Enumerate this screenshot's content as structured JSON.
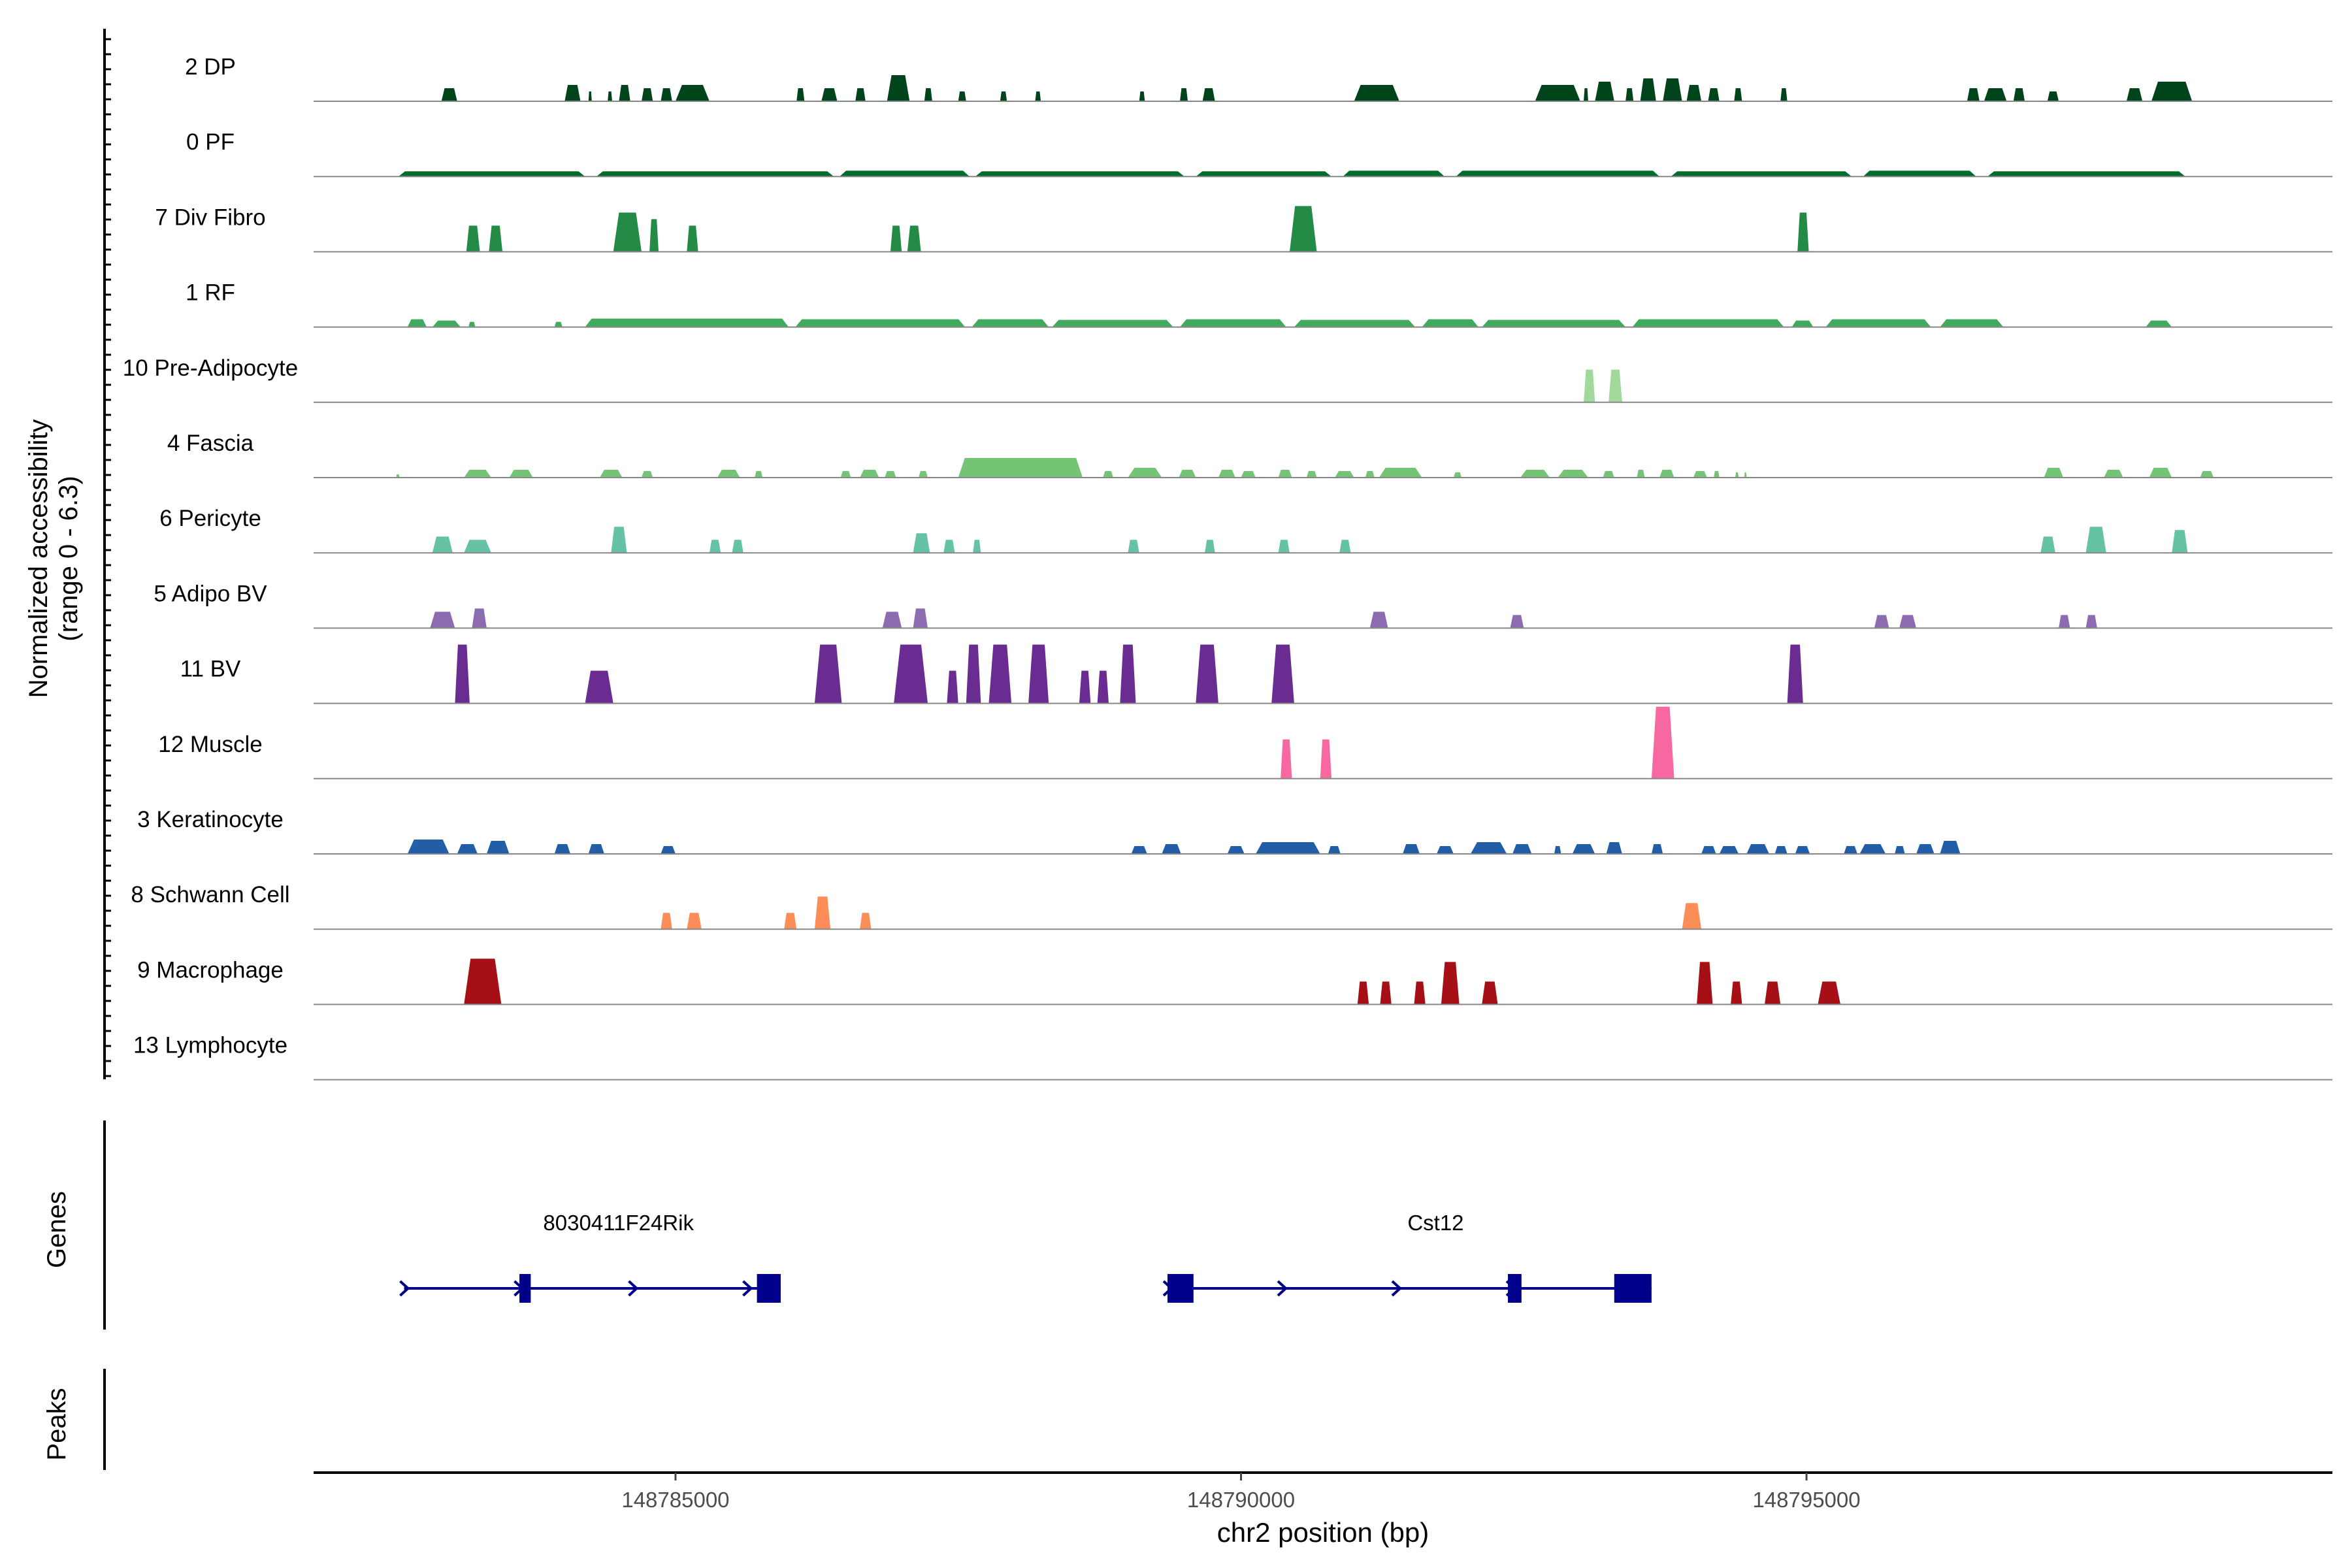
{
  "chart_data": {
    "type": "area",
    "title": "",
    "ylabel_line1": "Normalized accessibility",
    "ylabel_line2": "(range 0 - 6.3)",
    "genes_label": "Genes",
    "peaks_label": "Peaks",
    "xlabel": "chr2 position (bp)",
    "xlim": [
      148781800,
      148799650
    ],
    "x_ticks": [
      148785000,
      148790000,
      148795000
    ],
    "x_tick_labels": [
      "148785000",
      "148790000",
      "148795000"
    ],
    "y_range": [
      0,
      6.3
    ],
    "tracks": [
      {
        "name": "2 DP",
        "color": "#00441b",
        "regions": [
          [
            148782930,
            148783070,
            0.2
          ],
          [
            148784020,
            148784160,
            0.25
          ],
          [
            148784230,
            148784260,
            0.15
          ],
          [
            148784400,
            148784440,
            0.15
          ],
          [
            148784500,
            148784600,
            0.25
          ],
          [
            148784700,
            148784800,
            0.2
          ],
          [
            148784870,
            148784970,
            0.2
          ],
          [
            148785000,
            148785300,
            0.25
          ],
          [
            148786070,
            148786140,
            0.2
          ],
          [
            148786290,
            148786430,
            0.2
          ],
          [
            148786590,
            148786680,
            0.2
          ],
          [
            148786870,
            148787070,
            0.4
          ],
          [
            148787200,
            148787270,
            0.2
          ],
          [
            148787500,
            148787570,
            0.15
          ],
          [
            148787870,
            148787930,
            0.15
          ],
          [
            148788180,
            148788230,
            0.15
          ],
          [
            148789100,
            148789150,
            0.15
          ],
          [
            148789460,
            148789530,
            0.2
          ],
          [
            148789660,
            148789770,
            0.2
          ],
          [
            148791000,
            148791400,
            0.25
          ],
          [
            148792600,
            148793000,
            0.25
          ],
          [
            148793030,
            148793070,
            0.2
          ],
          [
            148793130,
            148793300,
            0.3
          ],
          [
            148793400,
            148793470,
            0.2
          ],
          [
            148793530,
            148793670,
            0.35
          ],
          [
            148793730,
            148793900,
            0.35
          ],
          [
            148793940,
            148794070,
            0.25
          ],
          [
            148794130,
            148794230,
            0.2
          ],
          [
            148794360,
            148794430,
            0.2
          ],
          [
            148794770,
            148794830,
            0.2
          ],
          [
            148796420,
            148796530,
            0.2
          ],
          [
            148796570,
            148796770,
            0.2
          ],
          [
            148796830,
            148796930,
            0.2
          ],
          [
            148797130,
            148797230,
            0.15
          ],
          [
            148797830,
            148797970,
            0.2
          ],
          [
            148798050,
            148798410,
            0.3
          ]
        ]
      },
      {
        "name": "0 PF",
        "color": "#006d2c",
        "regions": [
          [
            148782550,
            148784200,
            0.08
          ],
          [
            148784300,
            148786400,
            0.08
          ],
          [
            148786450,
            148787600,
            0.09
          ],
          [
            148787650,
            148789500,
            0.08
          ],
          [
            148789600,
            148790800,
            0.08
          ],
          [
            148790900,
            148791800,
            0.09
          ],
          [
            148791900,
            148793700,
            0.09
          ],
          [
            148793800,
            148795400,
            0.08
          ],
          [
            148795500,
            148796500,
            0.09
          ],
          [
            148796600,
            148798350,
            0.08
          ]
        ]
      },
      {
        "name": "7 Div Fibro",
        "color": "#238b45",
        "regions": [
          [
            148783150,
            148783270,
            0.4
          ],
          [
            148783350,
            148783470,
            0.4
          ],
          [
            148784450,
            148784700,
            0.6
          ],
          [
            148784770,
            148784850,
            0.5
          ],
          [
            148785100,
            148785200,
            0.4
          ],
          [
            148786900,
            148787000,
            0.4
          ],
          [
            148787050,
            148787170,
            0.4
          ],
          [
            148790430,
            148790670,
            0.7
          ],
          [
            148794920,
            148795020,
            0.6
          ]
        ]
      },
      {
        "name": "1 RF",
        "color": "#41ab5d",
        "regions": [
          [
            148782630,
            148782800,
            0.12
          ],
          [
            148782850,
            148783100,
            0.1
          ],
          [
            148783170,
            148783230,
            0.08
          ],
          [
            148783930,
            148784000,
            0.08
          ],
          [
            148784200,
            148786000,
            0.13
          ],
          [
            148786060,
            148787560,
            0.12
          ],
          [
            148787620,
            148788300,
            0.12
          ],
          [
            148788330,
            148789400,
            0.11
          ],
          [
            148789460,
            148790400,
            0.12
          ],
          [
            148790470,
            148791540,
            0.11
          ],
          [
            148791600,
            148792100,
            0.12
          ],
          [
            148792130,
            148793400,
            0.11
          ],
          [
            148793460,
            148794800,
            0.12
          ],
          [
            148794870,
            148795060,
            0.1
          ],
          [
            148795170,
            148796100,
            0.12
          ],
          [
            148796180,
            148796740,
            0.12
          ],
          [
            148798000,
            148798230,
            0.1
          ]
        ]
      },
      {
        "name": "10 Pre-Adipocyte",
        "color": "#a1d99b",
        "regions": [
          [
            148793030,
            148793130,
            0.5
          ],
          [
            148793250,
            148793370,
            0.5
          ]
        ]
      },
      {
        "name": "4 Fascia",
        "color": "#74c476",
        "regions": [
          [
            148782530,
            148782560,
            0.05
          ],
          [
            148783130,
            148783370,
            0.12
          ],
          [
            148783530,
            148783740,
            0.12
          ],
          [
            148784330,
            148784530,
            0.12
          ],
          [
            148784700,
            148784800,
            0.1
          ],
          [
            148785370,
            148785570,
            0.12
          ],
          [
            148785700,
            148785770,
            0.1
          ],
          [
            148786460,
            148786550,
            0.1
          ],
          [
            148786630,
            148786800,
            0.12
          ],
          [
            148786850,
            148786950,
            0.1
          ],
          [
            148787150,
            148787230,
            0.1
          ],
          [
            148787500,
            148788600,
            0.3
          ],
          [
            148788780,
            148788870,
            0.1
          ],
          [
            148789000,
            148789300,
            0.15
          ],
          [
            148789450,
            148789600,
            0.12
          ],
          [
            148789800,
            148789950,
            0.12
          ],
          [
            148790000,
            148790130,
            0.1
          ],
          [
            148790330,
            148790450,
            0.12
          ],
          [
            148790580,
            148790670,
            0.1
          ],
          [
            148790830,
            148791000,
            0.1
          ],
          [
            148791100,
            148791180,
            0.1
          ],
          [
            148791220,
            148791600,
            0.15
          ],
          [
            148791880,
            148791950,
            0.08
          ],
          [
            148792470,
            148792730,
            0.12
          ],
          [
            148792800,
            148793070,
            0.12
          ],
          [
            148793200,
            148793300,
            0.1
          ],
          [
            148793500,
            148793570,
            0.12
          ],
          [
            148793700,
            148793830,
            0.12
          ],
          [
            148794000,
            148794120,
            0.1
          ],
          [
            148794180,
            148794230,
            0.1
          ],
          [
            148794370,
            148794400,
            0.08
          ],
          [
            148794450,
            148794470,
            0.08
          ],
          [
            148797100,
            148797270,
            0.15
          ],
          [
            148797630,
            148797800,
            0.12
          ],
          [
            148798030,
            148798230,
            0.15
          ],
          [
            148798480,
            148798600,
            0.1
          ]
        ]
      },
      {
        "name": "6 Pericyte",
        "color": "#66c2a4",
        "regions": [
          [
            148782850,
            148783030,
            0.25
          ],
          [
            148783130,
            148783370,
            0.2
          ],
          [
            148784430,
            148784570,
            0.4
          ],
          [
            148785300,
            148785400,
            0.2
          ],
          [
            148785500,
            148785600,
            0.2
          ],
          [
            148787100,
            148787250,
            0.3
          ],
          [
            148787370,
            148787470,
            0.2
          ],
          [
            148787630,
            148787700,
            0.2
          ],
          [
            148789000,
            148789100,
            0.2
          ],
          [
            148789680,
            148789770,
            0.2
          ],
          [
            148790330,
            148790430,
            0.2
          ],
          [
            148790870,
            148790970,
            0.2
          ],
          [
            148797070,
            148797200,
            0.25
          ],
          [
            148797470,
            148797650,
            0.4
          ],
          [
            148798230,
            148798370,
            0.35
          ]
        ]
      },
      {
        "name": "5 Adipo BV",
        "color": "#8c6bb1",
        "regions": [
          [
            148782830,
            148783050,
            0.25
          ],
          [
            148783200,
            148783330,
            0.3
          ],
          [
            148786830,
            148787000,
            0.25
          ],
          [
            148787100,
            148787230,
            0.3
          ],
          [
            148791140,
            148791300,
            0.25
          ],
          [
            148792380,
            148792500,
            0.2
          ],
          [
            148795600,
            148795730,
            0.2
          ],
          [
            148795820,
            148795970,
            0.2
          ],
          [
            148797230,
            148797330,
            0.2
          ],
          [
            148797470,
            148797570,
            0.2
          ]
        ]
      },
      {
        "name": "11 BV",
        "color": "#6a2c91",
        "regions": [
          [
            148783050,
            148783180,
            0.9
          ],
          [
            148784200,
            148784450,
            0.5
          ],
          [
            148786230,
            148786470,
            0.9
          ],
          [
            148786930,
            148787230,
            0.9
          ],
          [
            148787400,
            148787500,
            0.5
          ],
          [
            148787570,
            148787700,
            0.9
          ],
          [
            148787770,
            148787970,
            0.9
          ],
          [
            148788120,
            148788300,
            0.9
          ],
          [
            148788570,
            148788670,
            0.5
          ],
          [
            148788730,
            148788830,
            0.5
          ],
          [
            148788930,
            148789070,
            0.9
          ],
          [
            148789600,
            148789800,
            0.9
          ],
          [
            148790270,
            148790470,
            0.9
          ],
          [
            148794830,
            148794970,
            0.9
          ]
        ]
      },
      {
        "name": "12 Muscle",
        "color": "#f768a1",
        "regions": [
          [
            148790350,
            148790450,
            0.6
          ],
          [
            148790700,
            148790800,
            0.6
          ],
          [
            148793630,
            148793830,
            1.1
          ]
        ]
      },
      {
        "name": "3 Keratinocyte",
        "color": "#225ea8",
        "regions": [
          [
            148782630,
            148783000,
            0.22
          ],
          [
            148783070,
            148783250,
            0.15
          ],
          [
            148783330,
            148783530,
            0.2
          ],
          [
            148783930,
            148784070,
            0.15
          ],
          [
            148784230,
            148784370,
            0.15
          ],
          [
            148784870,
            148785000,
            0.12
          ],
          [
            148789030,
            148789170,
            0.12
          ],
          [
            148789300,
            148789470,
            0.15
          ],
          [
            148789880,
            148790030,
            0.12
          ],
          [
            148790130,
            148790700,
            0.18
          ],
          [
            148790770,
            148790880,
            0.12
          ],
          [
            148791430,
            148791580,
            0.15
          ],
          [
            148791730,
            148791880,
            0.12
          ],
          [
            148792030,
            148792350,
            0.18
          ],
          [
            148792400,
            148792570,
            0.15
          ],
          [
            148792770,
            148792830,
            0.12
          ],
          [
            148792930,
            148793130,
            0.15
          ],
          [
            148793230,
            148793370,
            0.18
          ],
          [
            148793630,
            148793730,
            0.15
          ],
          [
            148794070,
            148794200,
            0.12
          ],
          [
            148794230,
            148794400,
            0.12
          ],
          [
            148794470,
            148794670,
            0.15
          ],
          [
            148794720,
            148794830,
            0.12
          ],
          [
            148794900,
            148795030,
            0.12
          ],
          [
            148795330,
            148795450,
            0.12
          ],
          [
            148795470,
            148795700,
            0.15
          ],
          [
            148795780,
            148795870,
            0.12
          ],
          [
            148795970,
            148796130,
            0.15
          ],
          [
            148796180,
            148796360,
            0.2
          ]
        ]
      },
      {
        "name": "8 Schwann Cell",
        "color": "#fc8d59",
        "regions": [
          [
            148784870,
            148784970,
            0.25
          ],
          [
            148785100,
            148785230,
            0.25
          ],
          [
            148785960,
            148786070,
            0.25
          ],
          [
            148786230,
            148786370,
            0.5
          ],
          [
            148786630,
            148786730,
            0.25
          ],
          [
            148793900,
            148794070,
            0.4
          ]
        ]
      },
      {
        "name": "9 Macrophage",
        "color": "#a50f15",
        "regions": [
          [
            148783130,
            148783460,
            0.7
          ],
          [
            148791030,
            148791130,
            0.35
          ],
          [
            148791230,
            148791330,
            0.35
          ],
          [
            148791530,
            148791630,
            0.35
          ],
          [
            148791770,
            148791930,
            0.65
          ],
          [
            148792130,
            148792270,
            0.35
          ],
          [
            148794030,
            148794170,
            0.65
          ],
          [
            148794330,
            148794430,
            0.35
          ],
          [
            148794630,
            148794770,
            0.35
          ],
          [
            148795100,
            148795300,
            0.35
          ]
        ]
      },
      {
        "name": "13 Lymphocyte",
        "color": "#3f007d",
        "regions": []
      }
    ],
    "genes": [
      {
        "name": "8030411F24Rik",
        "strand": "+",
        "start": 148782600,
        "end": 148785930,
        "exons": [
          [
            148783620,
            148783720
          ],
          [
            148785720,
            148785930
          ]
        ]
      },
      {
        "name": "Cst12",
        "strand": "+",
        "start": 148789350,
        "end": 148793630,
        "exons": [
          [
            148789350,
            148789580
          ],
          [
            148792360,
            148792480
          ],
          [
            148793300,
            148793630
          ]
        ]
      }
    ],
    "gene_color": "#00008b",
    "peaks": []
  }
}
